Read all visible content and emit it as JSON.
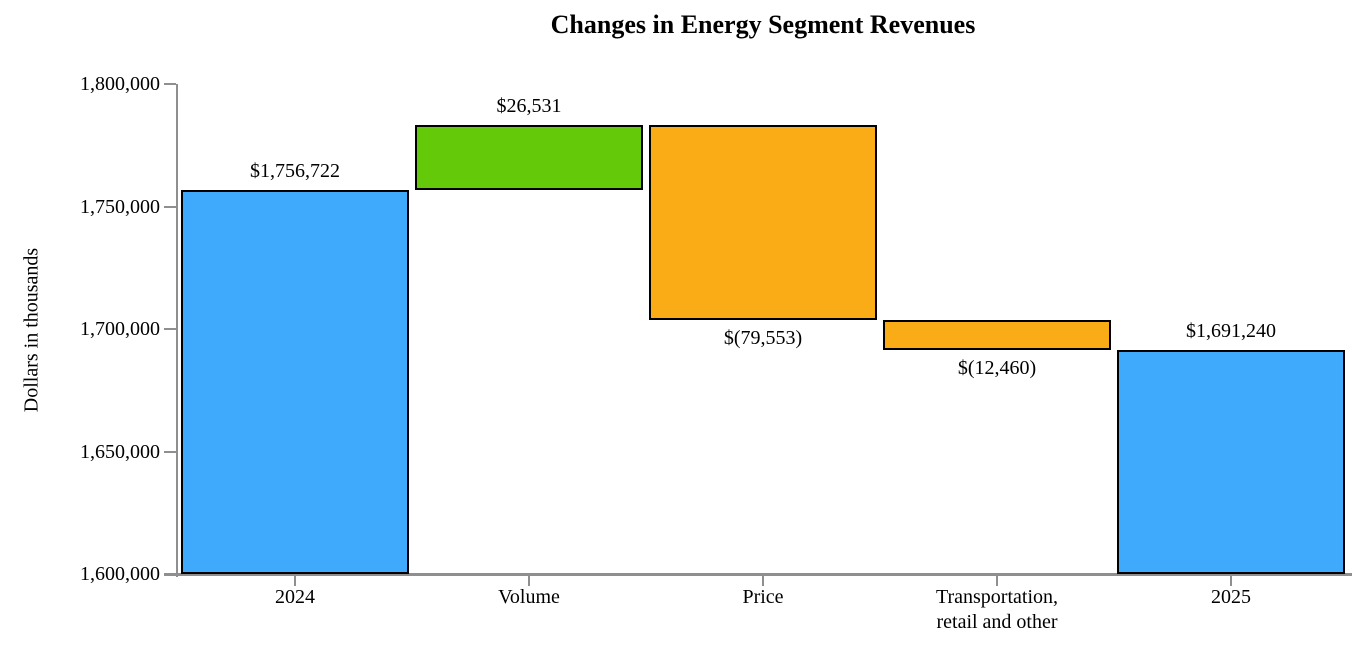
{
  "chart_data": {
    "type": "waterfall",
    "title": "Changes in Energy Segment Revenues",
    "ylabel": "Dollars in thousands",
    "xlabel": "",
    "ylim": [
      1600000,
      1800000
    ],
    "ytick_interval": 50000,
    "ytick_values": [
      1600000,
      1650000,
      1700000,
      1750000,
      1800000
    ],
    "ytick_labels": [
      "1,600,000",
      "1,650,000",
      "1,700,000",
      "1,750,000",
      "1,800,000"
    ],
    "grid": false,
    "legend": "none",
    "colors": {
      "total_bar": "#3FAAFB",
      "increase_bar": "#63C908",
      "decrease_bar": "#F9AC15",
      "bar_border": "#000000",
      "axis": "#8F8F8F",
      "text": "#000000"
    },
    "bars": [
      {
        "category_lines": [
          "2024"
        ],
        "role": "total",
        "value": 1756722,
        "label": "$1,756,722",
        "start": 1600000,
        "end": 1756722,
        "label_position": "above"
      },
      {
        "category_lines": [
          "Volume"
        ],
        "role": "increase",
        "value": 26531,
        "label": "$26,531",
        "start": 1756722,
        "end": 1783253,
        "label_position": "above"
      },
      {
        "category_lines": [
          "Price"
        ],
        "role": "decrease",
        "value": -79553,
        "label": "$(79,553)",
        "start": 1783253,
        "end": 1703700,
        "label_position": "below"
      },
      {
        "category_lines": [
          "Transportation,",
          "retail and other"
        ],
        "role": "decrease",
        "value": -12460,
        "label": "$(12,460)",
        "start": 1703700,
        "end": 1691240,
        "label_position": "below"
      },
      {
        "category_lines": [
          "2025"
        ],
        "role": "total",
        "value": 1691240,
        "label": "$1,691,240",
        "start": 1600000,
        "end": 1691240,
        "label_position": "above"
      }
    ]
  }
}
